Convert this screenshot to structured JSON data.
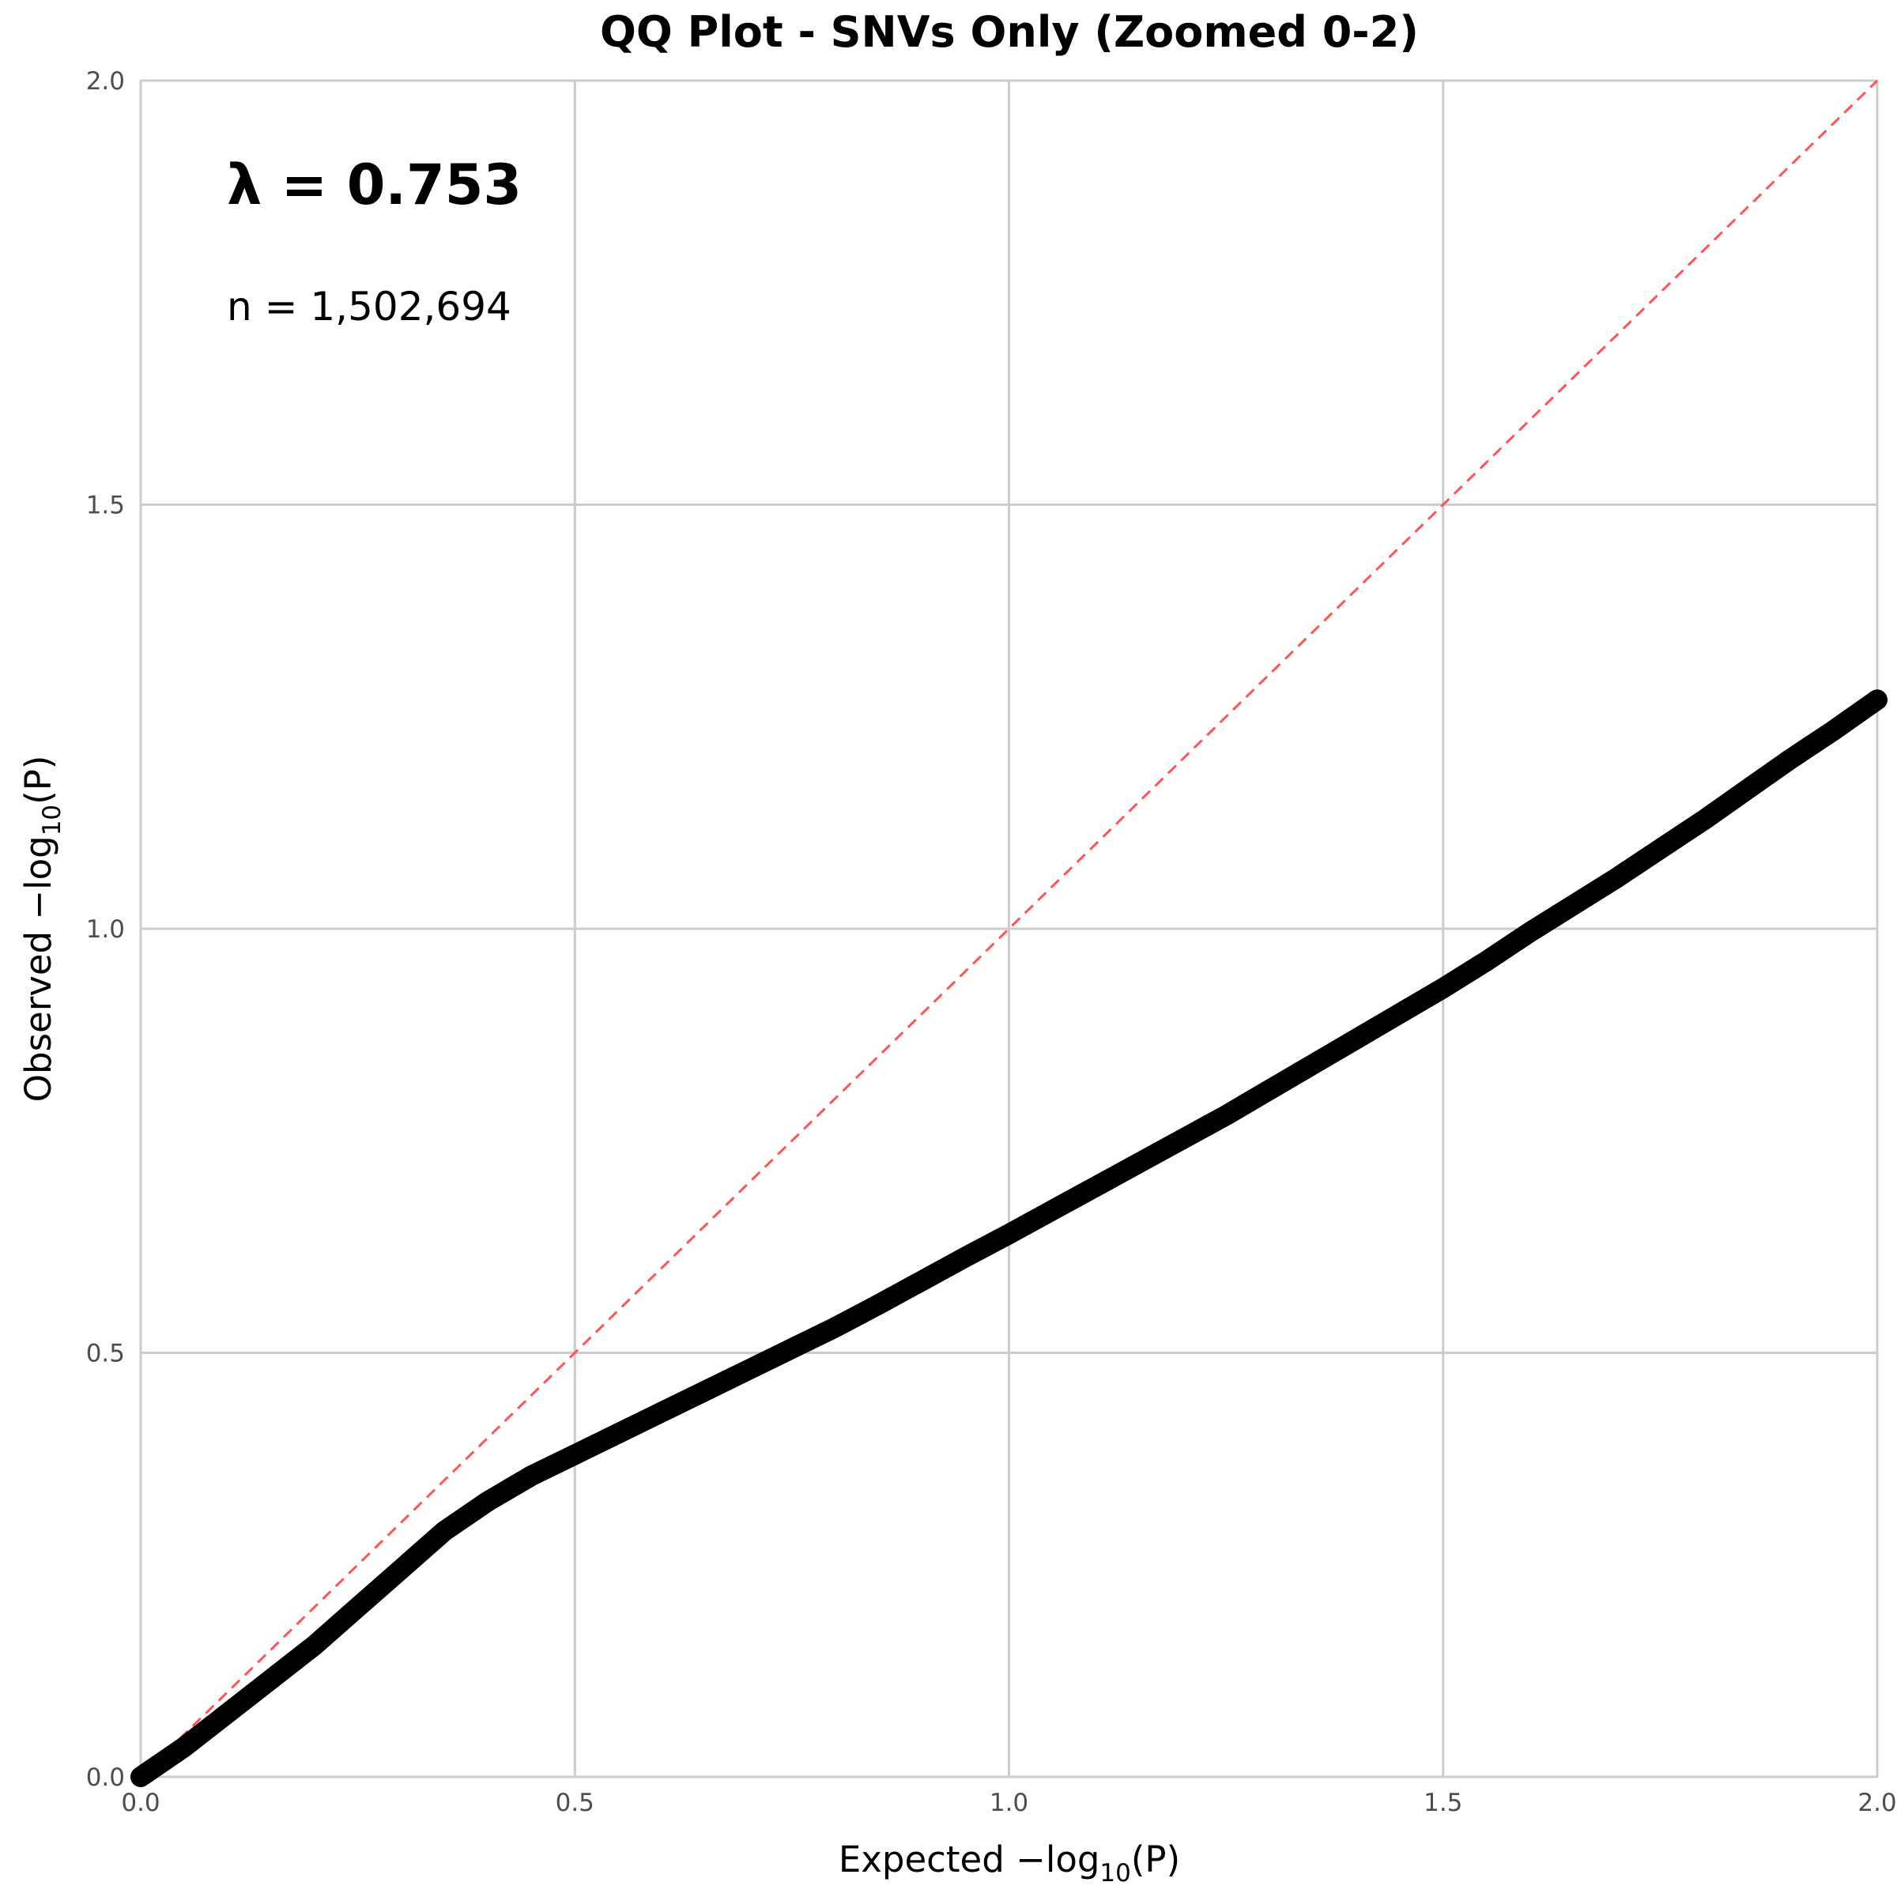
{
  "chart_data": {
    "type": "scatter",
    "title": "QQ Plot - SNVs Only (Zoomed 0-2)",
    "xlabel": {
      "prefix": "Expected −log",
      "sub": "10",
      "suffix": "(P)"
    },
    "ylabel": {
      "prefix": "Observed −log",
      "sub": "10",
      "suffix": "(P)"
    },
    "xlim": [
      0,
      2
    ],
    "ylim": [
      0,
      2
    ],
    "xticks": [
      0.0,
      0.5,
      1.0,
      1.5,
      2.0
    ],
    "yticks": [
      0.0,
      0.5,
      1.0,
      1.5,
      2.0
    ],
    "xtick_labels": [
      "0.0",
      "0.5",
      "1.0",
      "1.5",
      "2.0"
    ],
    "ytick_labels": [
      "0.0",
      "0.5",
      "1.0",
      "1.5",
      "2.0"
    ],
    "grid": true,
    "reference_line": {
      "x": [
        0,
        2
      ],
      "y": [
        0,
        2
      ],
      "color": "#ff5555",
      "style": "dashed"
    },
    "series": [
      {
        "color": "#000000",
        "x": [
          0.0,
          0.05,
          0.1,
          0.15,
          0.2,
          0.25,
          0.3,
          0.35,
          0.4,
          0.45,
          0.5,
          0.55,
          0.6,
          0.65,
          0.7,
          0.75,
          0.8,
          0.85,
          0.9,
          0.95,
          1.0,
          1.05,
          1.1,
          1.15,
          1.2,
          1.25,
          1.3,
          1.35,
          1.4,
          1.45,
          1.5,
          1.55,
          1.6,
          1.65,
          1.7,
          1.75,
          1.8,
          1.85,
          1.9,
          1.95,
          2.0
        ],
        "y": [
          0.0,
          0.035,
          0.075,
          0.115,
          0.155,
          0.2,
          0.245,
          0.29,
          0.325,
          0.355,
          0.38,
          0.405,
          0.43,
          0.455,
          0.48,
          0.505,
          0.53,
          0.557,
          0.585,
          0.613,
          0.64,
          0.668,
          0.696,
          0.724,
          0.752,
          0.78,
          0.81,
          0.84,
          0.87,
          0.9,
          0.93,
          0.962,
          0.996,
          1.028,
          1.06,
          1.094,
          1.128,
          1.164,
          1.2,
          1.234,
          1.27
        ]
      }
    ],
    "annotations": {
      "lambda": "λ = 0.753",
      "n": "n = 1,502,694"
    }
  }
}
